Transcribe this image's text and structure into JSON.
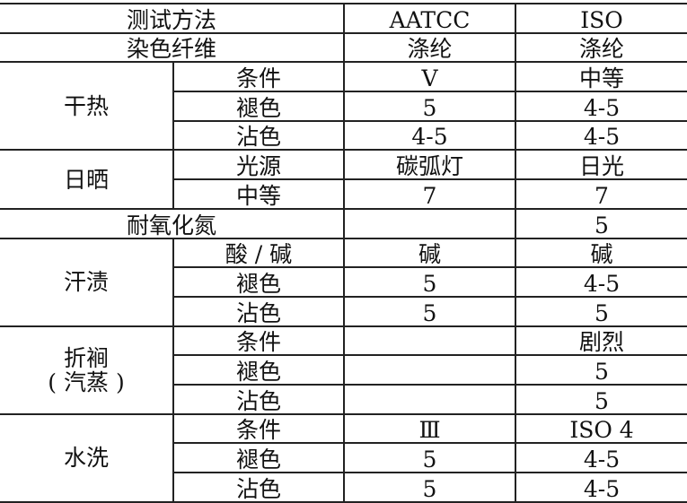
{
  "header": {
    "method": "测试方法",
    "aatcc": "AATCC",
    "iso": "ISO"
  },
  "fiber": {
    "label": "染色纤维",
    "aatcc": "涤纶",
    "iso": "涤纶"
  },
  "groups": [
    {
      "name": "干热",
      "rows": [
        {
          "label": "条件",
          "aatcc": "V",
          "iso": "中等"
        },
        {
          "label": "褪色",
          "aatcc": "5",
          "iso": "4-5"
        },
        {
          "label": "沾色",
          "aatcc": "4-5",
          "iso": "4-5"
        }
      ]
    },
    {
      "name": "日晒",
      "rows": [
        {
          "label": "光源",
          "aatcc": "碳弧灯",
          "iso": "日光"
        },
        {
          "label": "中等",
          "aatcc": "7",
          "iso": "7"
        }
      ]
    },
    {
      "name": "耐氧化氮",
      "single": true,
      "aatcc": "",
      "iso": "5"
    },
    {
      "name": "汗渍",
      "rows": [
        {
          "label": "酸 / 碱",
          "aatcc": "碱",
          "iso": "碱"
        },
        {
          "label": "褪色",
          "aatcc": "5",
          "iso": "4-5"
        },
        {
          "label": "沾色",
          "aatcc": "5",
          "iso": "5"
        }
      ]
    },
    {
      "name": "折裥",
      "name2": "( 汽蒸 )",
      "rows": [
        {
          "label": "条件",
          "aatcc": "",
          "iso": "剧烈"
        },
        {
          "label": "褪色",
          "aatcc": "",
          "iso": "5"
        },
        {
          "label": "沾色",
          "aatcc": "",
          "iso": "5"
        }
      ]
    },
    {
      "name": "水洗",
      "rows": [
        {
          "label": "条件",
          "aatcc": "Ⅲ",
          "iso": "ISO 4"
        },
        {
          "label": "褪色",
          "aatcc": "5",
          "iso": "4-5"
        },
        {
          "label": "沾色",
          "aatcc": "5",
          "iso": "4-5"
        }
      ]
    }
  ]
}
